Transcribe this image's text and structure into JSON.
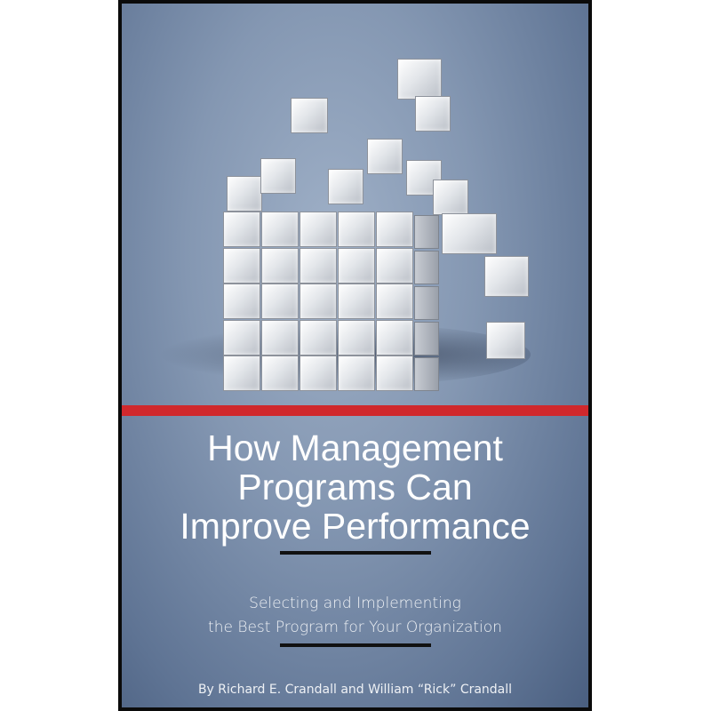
{
  "book": {
    "title_lines": [
      "How Management",
      "Programs Can",
      "Improve Performance"
    ],
    "subtitle_lines": [
      "Selecting and Implementing",
      "the Best Program for Your Organization"
    ],
    "authors": "By Richard E. Crandall and William “Rick” Crandall"
  },
  "colors": {
    "background": "#8497b2",
    "accent_bar": "#d0282c",
    "border": "#0b0b0b"
  }
}
